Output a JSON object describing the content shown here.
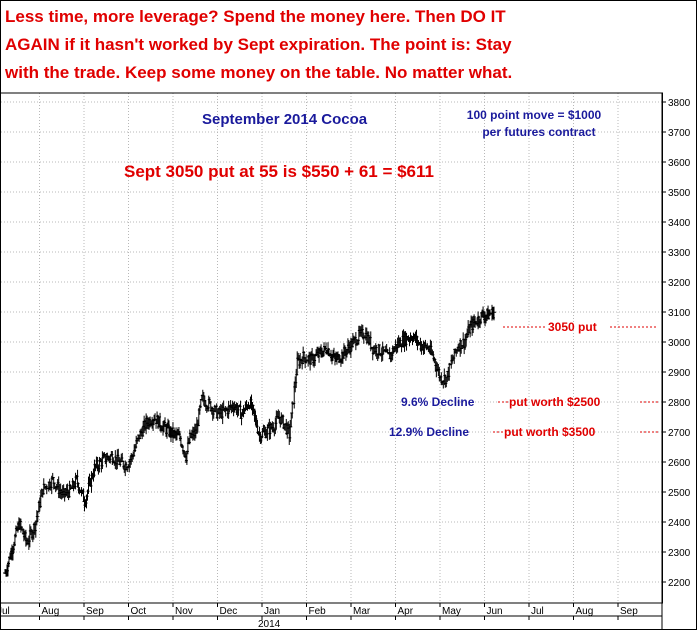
{
  "headline": [
    "Less time, more leverage? Spend the money here. Then DO IT",
    "AGAIN if it hasn't worked by Sept expiration. The point is: Stay",
    "with the trade. Keep some money on the table. No matter what."
  ],
  "colors": {
    "headline": "#e00000",
    "title": "#1a1a9c",
    "bars": "#000000",
    "level_line": "#e00000"
  },
  "chart_data": {
    "type": "bar",
    "style": "ohlc-bars",
    "title": "September 2014 Cocoa",
    "note": [
      "100 point move = $1000",
      "per futures contract"
    ],
    "calc": "Sept 3050 put at 55 is $550 + 61 = $611",
    "year_label": "2014",
    "ylim": [
      2130,
      3830
    ],
    "yticks": [
      2200,
      2300,
      2400,
      2500,
      2600,
      2700,
      2800,
      2900,
      3000,
      3100,
      3200,
      3300,
      3400,
      3500,
      3600,
      3700,
      3800
    ],
    "months": [
      "Jul",
      "Aug",
      "Sep",
      "Oct",
      "Nov",
      "Dec",
      "Jan",
      "Feb",
      "Mar",
      "Apr",
      "May",
      "Jun",
      "Jul",
      "Aug",
      "Sep"
    ],
    "grid": true,
    "levels": [
      {
        "price": 3050,
        "label": "3050 put",
        "pct": "",
        "value": ""
      },
      {
        "price": 2800,
        "label": "put worth $2500",
        "pct": "9.6% Decline",
        "value": "$2500"
      },
      {
        "price": 2700,
        "label": "put worth $3500",
        "pct": "12.9% Decline",
        "value": "$3500"
      }
    ],
    "series": [
      {
        "anchors": [
          [
            0,
            2230
          ],
          [
            6,
            2300
          ],
          [
            14,
            2395
          ],
          [
            22,
            2330
          ],
          [
            30,
            2390
          ],
          [
            38,
            2510
          ],
          [
            48,
            2540
          ],
          [
            58,
            2490
          ],
          [
            66,
            2505
          ],
          [
            72,
            2540
          ],
          [
            80,
            2470
          ],
          [
            90,
            2580
          ],
          [
            100,
            2610
          ],
          [
            108,
            2620
          ],
          [
            114,
            2600
          ],
          [
            122,
            2590
          ],
          [
            128,
            2620
          ],
          [
            134,
            2680
          ],
          [
            142,
            2730
          ],
          [
            150,
            2750
          ],
          [
            158,
            2720
          ],
          [
            166,
            2700
          ],
          [
            176,
            2680
          ],
          [
            182,
            2620
          ],
          [
            186,
            2680
          ],
          [
            192,
            2700
          ],
          [
            198,
            2810
          ],
          [
            206,
            2790
          ],
          [
            214,
            2760
          ],
          [
            222,
            2770
          ],
          [
            230,
            2790
          ],
          [
            238,
            2760
          ],
          [
            246,
            2800
          ],
          [
            250,
            2760
          ],
          [
            256,
            2690
          ],
          [
            262,
            2700
          ],
          [
            270,
            2720
          ],
          [
            276,
            2750
          ],
          [
            282,
            2720
          ],
          [
            286,
            2690
          ],
          [
            290,
            2810
          ],
          [
            294,
            2930
          ],
          [
            300,
            2950
          ],
          [
            308,
            2940
          ],
          [
            316,
            2960
          ],
          [
            324,
            2980
          ],
          [
            332,
            2940
          ],
          [
            340,
            2960
          ],
          [
            348,
            2990
          ],
          [
            356,
            3020
          ],
          [
            362,
            3030
          ],
          [
            370,
            2980
          ],
          [
            378,
            2970
          ],
          [
            386,
            2950
          ],
          [
            394,
            2990
          ],
          [
            402,
            3010
          ],
          [
            410,
            3020
          ],
          [
            418,
            2990
          ],
          [
            426,
            2980
          ],
          [
            432,
            2940
          ],
          [
            438,
            2880
          ],
          [
            444,
            2880
          ],
          [
            450,
            2940
          ],
          [
            456,
            2990
          ],
          [
            462,
            3000
          ],
          [
            468,
            3050
          ],
          [
            474,
            3070
          ],
          [
            480,
            3090
          ],
          [
            486,
            3090
          ],
          [
            492,
            3100
          ]
        ]
      }
    ]
  }
}
